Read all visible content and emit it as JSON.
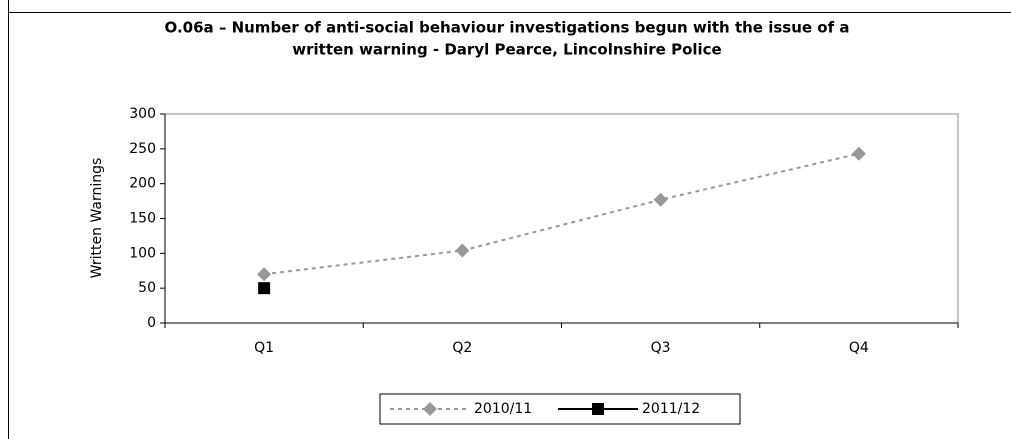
{
  "chart_data": {
    "type": "line",
    "title": "O.06a – Number of anti-social behaviour investigations begun with the issue of a",
    "subtitle": "written warning - Daryl Pearce, Lincolnshire Police",
    "y_label": "Written Warnings",
    "categories": [
      "Q1",
      "Q2",
      "Q3",
      "Q4"
    ],
    "series": [
      {
        "name": "2010/11",
        "color": "#999999",
        "values": [
          70,
          104,
          177,
          243
        ]
      },
      {
        "name": "2011/12",
        "color": "#000000",
        "values": [
          50,
          null,
          null,
          null
        ]
      }
    ],
    "ylim": [
      0,
      300
    ],
    "yticks": [
      0,
      50,
      100,
      150,
      200,
      250,
      300
    ],
    "legend": "bottom"
  }
}
